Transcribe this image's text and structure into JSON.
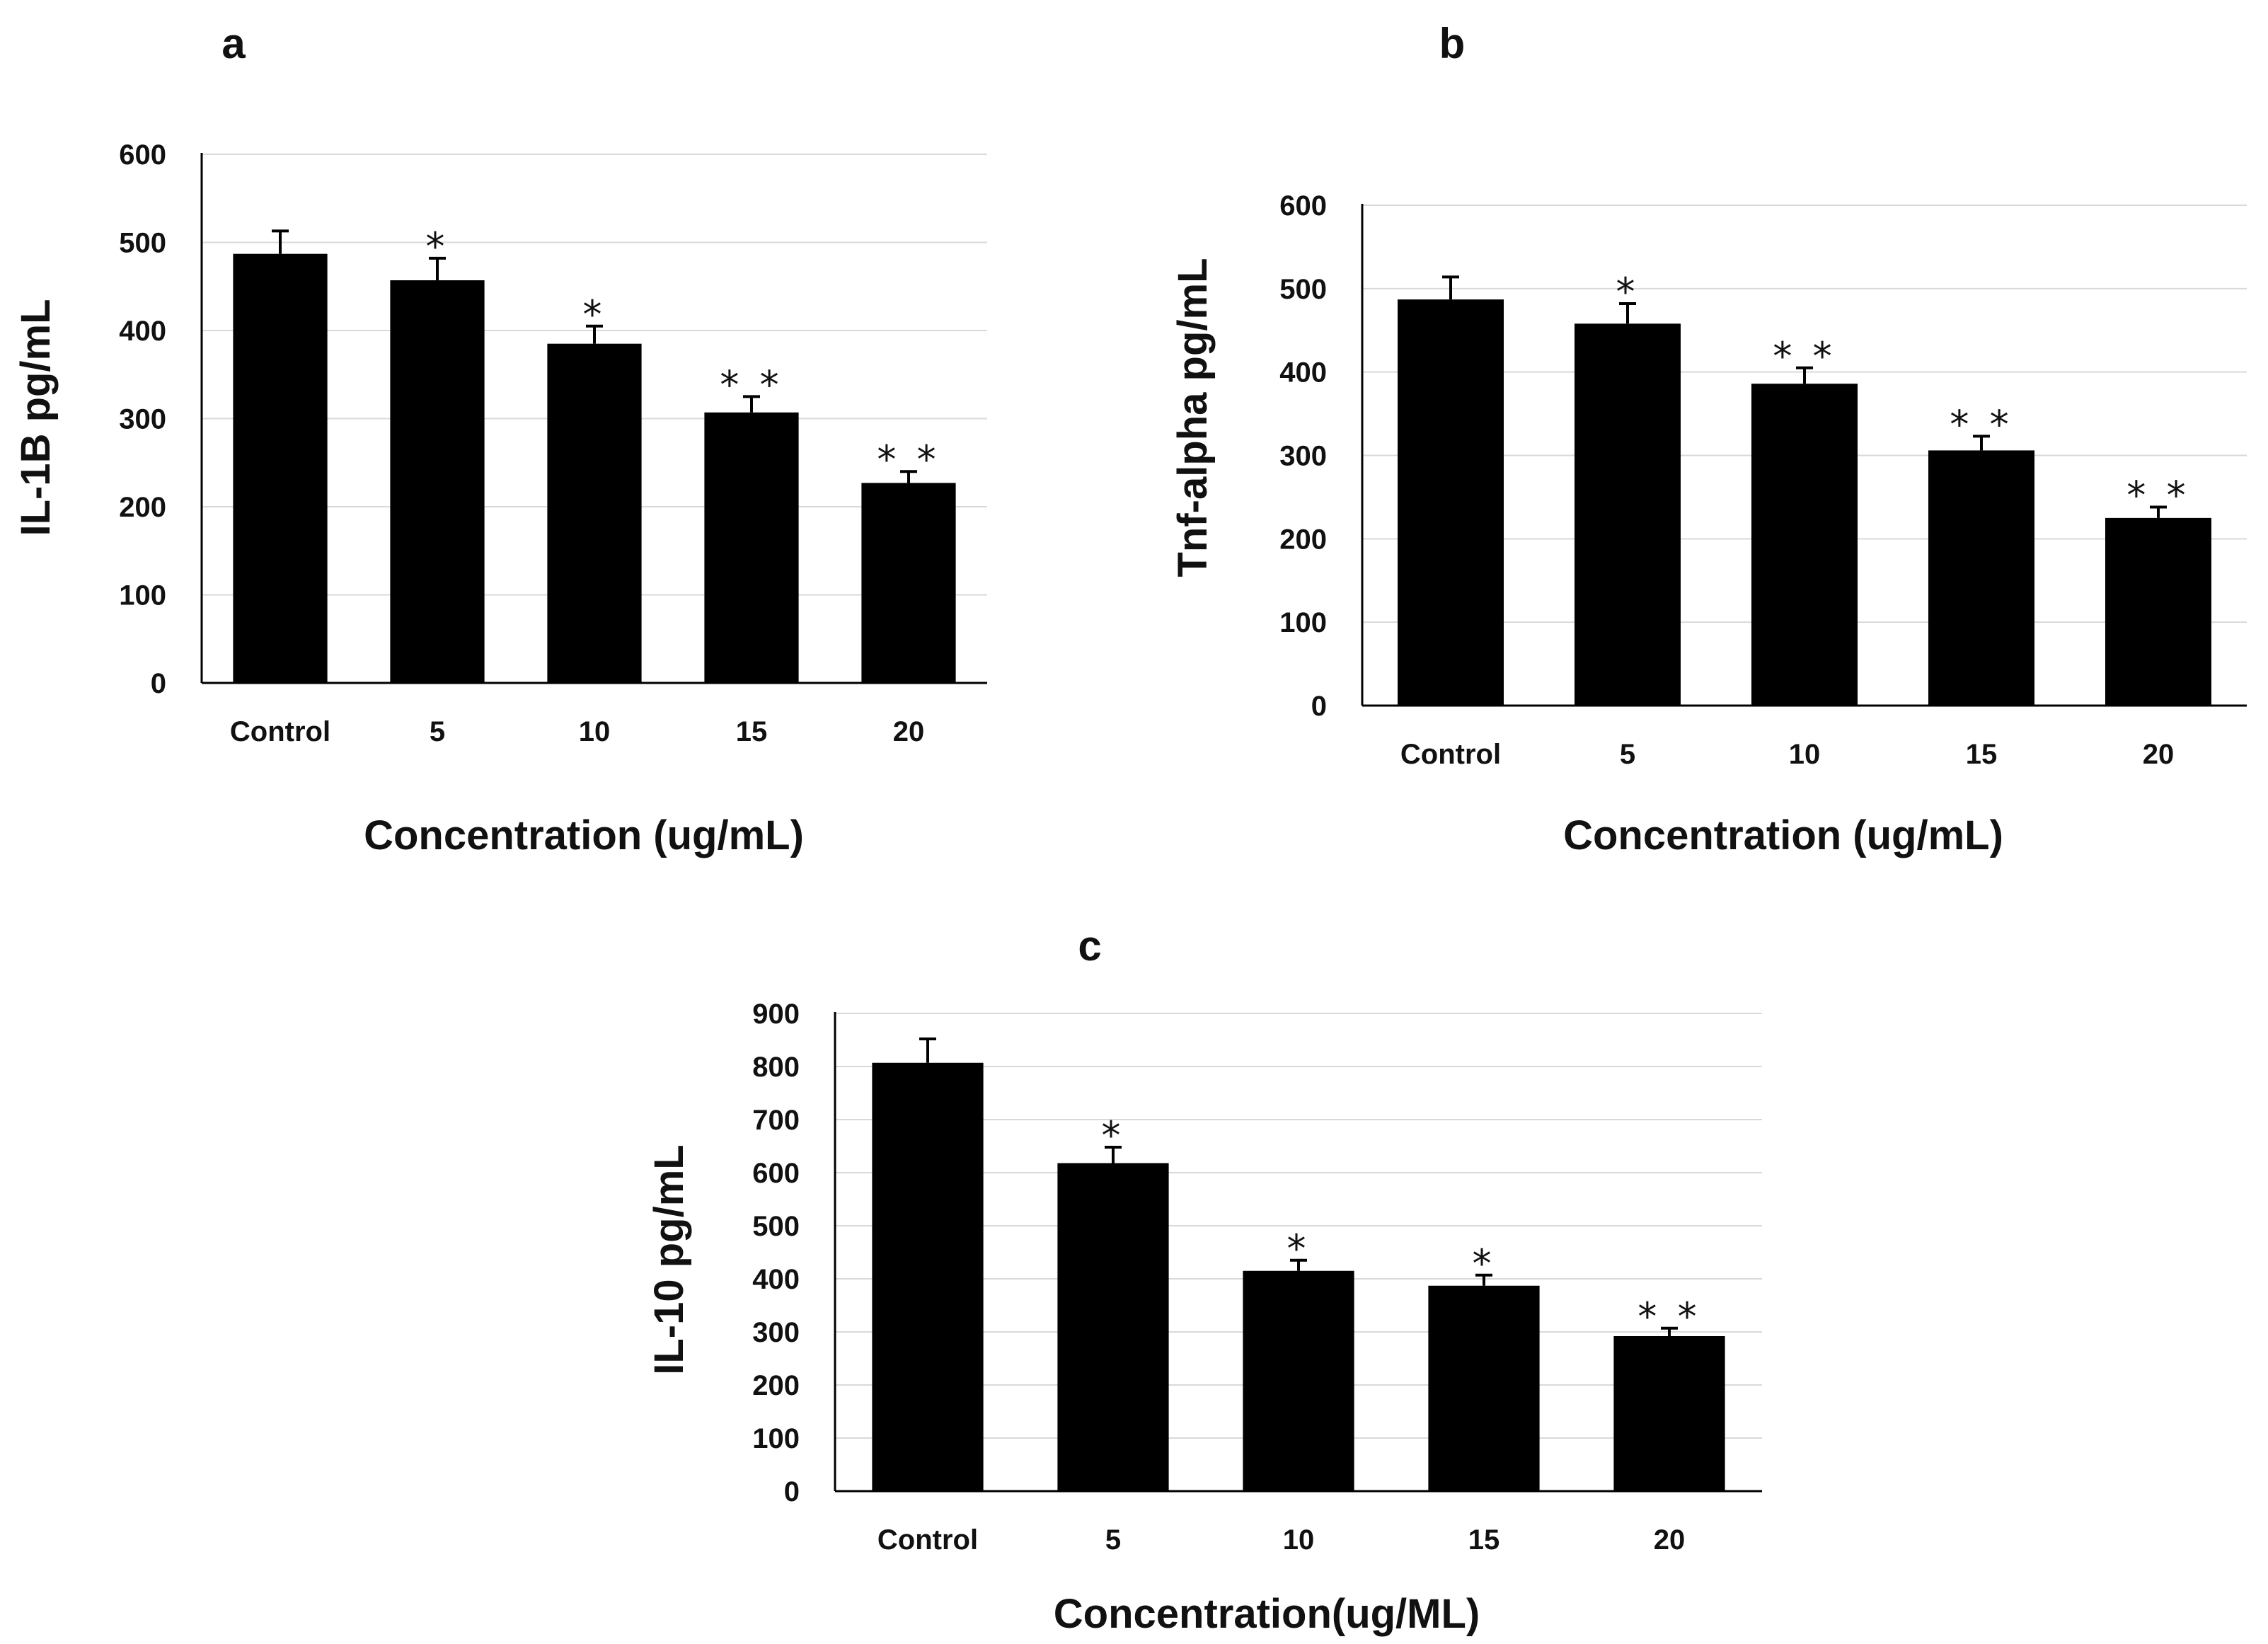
{
  "colors": {
    "bar": "#000000",
    "grid": "#d9d9d9",
    "axis": "#000000",
    "text": "#111111"
  },
  "chart_data": [
    {
      "panel": "a",
      "type": "bar",
      "categories": [
        "Control",
        "5",
        "10",
        "15",
        "20"
      ],
      "values": [
        487,
        457,
        385,
        307,
        227
      ],
      "errors": [
        26,
        25,
        20,
        18,
        13
      ],
      "significance": [
        "",
        "*",
        "*",
        "**",
        "**"
      ],
      "title": "",
      "xlabel": "Concentration (ug/mL)",
      "ylabel": "IL-1B pg/mL",
      "ylim": [
        0,
        600
      ],
      "yticks": [
        0,
        100,
        200,
        300,
        400,
        500,
        600
      ],
      "grid": true,
      "legend": "none"
    },
    {
      "panel": "b",
      "type": "bar",
      "categories": [
        "Control",
        "5",
        "10",
        "15",
        "20"
      ],
      "values": [
        487,
        458,
        386,
        306,
        225
      ],
      "errors": [
        27,
        24,
        19,
        17,
        13
      ],
      "significance": [
        "",
        "*",
        "**",
        "**",
        "**"
      ],
      "title": "",
      "xlabel": "Concentration (ug/mL)",
      "ylabel": "Tnf-alpha pg/mL",
      "ylim": [
        0,
        600
      ],
      "yticks": [
        0,
        100,
        200,
        300,
        400,
        500,
        600
      ],
      "grid": true,
      "legend": "none"
    },
    {
      "panel": "c",
      "type": "bar",
      "categories": [
        "Control",
        "5",
        "10",
        "15",
        "20"
      ],
      "values": [
        807,
        618,
        415,
        387,
        292
      ],
      "errors": [
        45,
        30,
        20,
        20,
        15
      ],
      "significance": [
        "",
        "*",
        "*",
        "*",
        "**"
      ],
      "title": "",
      "xlabel": "Concentration(ug/ML)",
      "ylabel": "IL-10 pg/mL",
      "ylim": [
        0,
        900
      ],
      "yticks": [
        0,
        100,
        200,
        300,
        400,
        500,
        600,
        700,
        800,
        900
      ],
      "grid": true,
      "legend": "none"
    }
  ]
}
